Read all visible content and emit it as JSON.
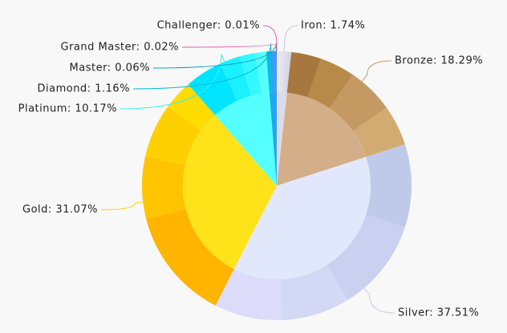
{
  "chart_data": {
    "type": "sunburst",
    "labels": [
      "Iron: 1.74%",
      "Bronze: 18.29%",
      "Silver: 37.51%",
      "Gold: 31.07%",
      "Platinum: 10.17%",
      "Diamond: 1.16%",
      "Master: 0.06%",
      "Grand Master: 0.02%",
      "Challenger: 0.01%"
    ],
    "values": [
      1.74,
      18.29,
      37.51,
      31.07,
      10.17,
      1.16,
      0.06,
      0.02,
      0.01
    ],
    "colors": [
      "#dcdce8",
      "#d4ae88",
      "#e2e8fb",
      "#ffe31a",
      "#55ffff",
      "#1ea8f0",
      "#1e70ff",
      "#1a5ae0",
      "#3d3dff"
    ],
    "divisions": [
      [
        0.5,
        0.45,
        0.4,
        0.39
      ],
      [
        3.6,
        4.2,
        5.6,
        4.89
      ],
      [
        10,
        11.1,
        8.3,
        8.11
      ],
      [
        13.5,
        7.5,
        6.5,
        3.57
      ],
      [
        4.5,
        2.5,
        1.8,
        1.37
      ],
      [
        0.4,
        0.3,
        0.26,
        0.2
      ],
      [
        0.06
      ],
      [
        0.02
      ],
      [
        0.01
      ]
    ],
    "division_colors": [
      [
        "#e8e8f0",
        "#e2e2ec",
        "#dcdce8",
        "#d6d6e4"
      ],
      [
        "#a8773e",
        "#b88a4a",
        "#c49a62",
        "#d2ab72"
      ],
      [
        "#bfc9ea",
        "#c9d0f0",
        "#d3d8f4",
        "#dcdcfa"
      ],
      [
        "#ffb400",
        "#ffc400",
        "#ffd000",
        "#ffdc00"
      ],
      [
        "#00e5ff",
        "#1af0ff",
        "#33f8ff",
        "#55ffff"
      ],
      [
        "#0cb7e8",
        "#18a8f0",
        "#2aa0f8",
        "#3c96ff"
      ],
      [
        "#2a6cff"
      ],
      [
        "#1a5ae0"
      ],
      [
        "#3d3dff"
      ]
    ],
    "leader_colors": [
      "#c8c8d8",
      "#c49a6c",
      "#c8cce8",
      "#ffd000",
      "#33f0ff",
      "#00b8d4",
      "#0aa0c8",
      "#e060a0",
      "#e060b0"
    ]
  }
}
